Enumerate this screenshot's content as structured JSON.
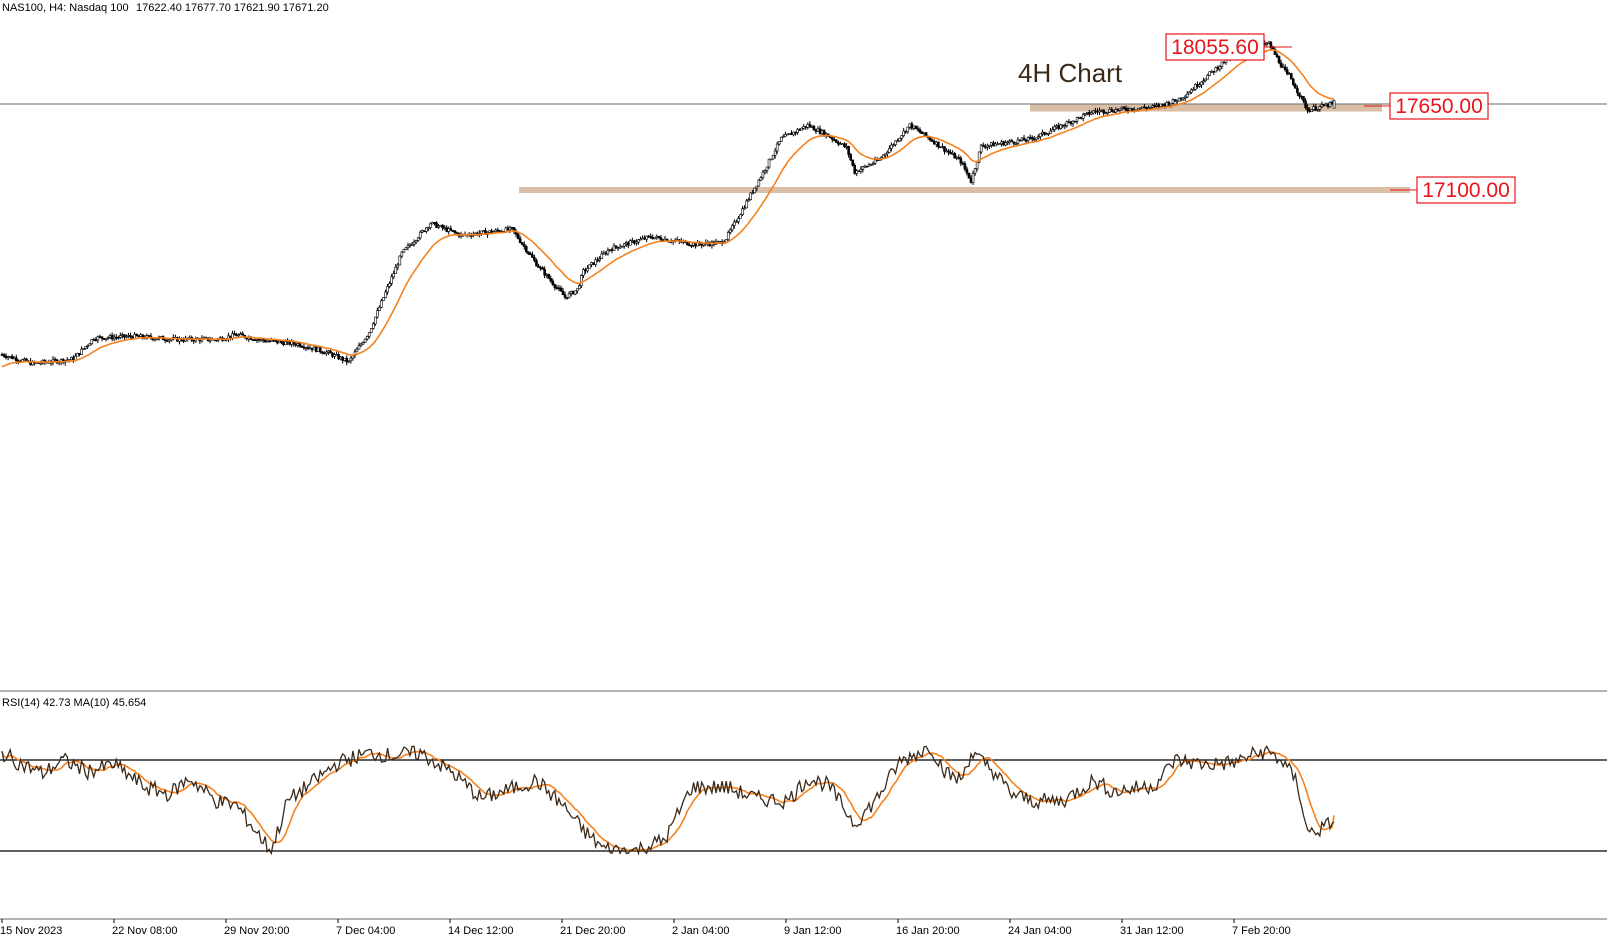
{
  "header": {
    "symbol": "NAS100, H4:  Nasdaq 100",
    "ohlc": "17622.40 17677.70 17621.90 17671.20"
  },
  "chart_data": {
    "type": "candlestick",
    "title": "4H Chart",
    "instrument": "NAS100",
    "timeframe": "H4",
    "last_ohlc": {
      "open": 17622.4,
      "high": 17677.7,
      "low": 17621.9,
      "close": 17671.2
    },
    "x_ticks": [
      "15 Nov 2023",
      "22 Nov 08:00",
      "29 Nov 20:00",
      "7 Dec 04:00",
      "14 Dec 12:00",
      "21 Dec 20:00",
      "2 Jan 04:00",
      "9 Jan 12:00",
      "16 Jan 20:00",
      "24 Jan 04:00",
      "31 Jan 12:00",
      "7 Feb 20:00"
    ],
    "price_range": [
      15750,
      18150
    ],
    "price_path_keypoints": [
      [
        0,
        15990
      ],
      [
        15,
        15930
      ],
      [
        35,
        15960
      ],
      [
        45,
        16100
      ],
      [
        65,
        16110
      ],
      [
        85,
        16090
      ],
      [
        105,
        16090
      ],
      [
        115,
        16120
      ],
      [
        130,
        16080
      ],
      [
        145,
        16060
      ],
      [
        160,
        16000
      ],
      [
        170,
        15940
      ],
      [
        180,
        16140
      ],
      [
        196,
        16660
      ],
      [
        210,
        16860
      ],
      [
        225,
        16780
      ],
      [
        250,
        16820
      ],
      [
        262,
        16590
      ],
      [
        276,
        16370
      ],
      [
        282,
        16420
      ],
      [
        285,
        16540
      ],
      [
        298,
        16690
      ],
      [
        318,
        16770
      ],
      [
        340,
        16720
      ],
      [
        352,
        16730
      ],
      [
        355,
        16760
      ],
      [
        370,
        17120
      ],
      [
        382,
        17420
      ],
      [
        395,
        17510
      ],
      [
        405,
        17440
      ],
      [
        414,
        17360
      ],
      [
        418,
        17200
      ],
      [
        430,
        17280
      ],
      [
        445,
        17510
      ],
      [
        458,
        17390
      ],
      [
        470,
        17270
      ],
      [
        475,
        17140
      ],
      [
        480,
        17370
      ],
      [
        505,
        17420
      ],
      [
        535,
        17600
      ],
      [
        565,
        17630
      ],
      [
        575,
        17670
      ],
      [
        580,
        17710
      ],
      [
        605,
        18000
      ],
      [
        621,
        18050
      ],
      [
        630,
        17840
      ],
      [
        631,
        17840
      ],
      [
        640,
        17610
      ],
      [
        652,
        17650
      ],
      [
        653,
        17671
      ]
    ],
    "moving_average": {
      "name": "",
      "color": "#f5821f"
    },
    "levels": [
      {
        "value": 18055.6,
        "label": "18055.60",
        "type": "high"
      },
      {
        "value": 17650.0,
        "label": "17650.00",
        "type": "resistance-zone",
        "zone": [
          17600,
          17650
        ]
      },
      {
        "value": 17100.0,
        "label": "17100.00",
        "type": "support-zone",
        "zone": [
          17060,
          17100
        ]
      }
    ],
    "horizontal_line": 17650.0,
    "rsi": {
      "label": "RSI(14) 42.73 MA(10) 45.654",
      "period": 14,
      "value": 42.73,
      "ma_period": 10,
      "ma_value": 45.654,
      "levels": [
        70,
        30
      ],
      "range": [
        20,
        80
      ],
      "keypoints": [
        [
          0,
          73
        ],
        [
          10,
          68
        ],
        [
          20,
          64
        ],
        [
          30,
          70
        ],
        [
          42,
          65
        ],
        [
          55,
          68
        ],
        [
          70,
          58
        ],
        [
          82,
          55
        ],
        [
          92,
          62
        ],
        [
          105,
          52
        ],
        [
          115,
          50
        ],
        [
          125,
          38
        ],
        [
          132,
          30
        ],
        [
          140,
          52
        ],
        [
          152,
          60
        ],
        [
          165,
          69
        ],
        [
          180,
          73
        ],
        [
          190,
          72
        ],
        [
          205,
          73
        ],
        [
          220,
          65
        ],
        [
          235,
          53
        ],
        [
          252,
          58
        ],
        [
          262,
          61
        ],
        [
          275,
          50
        ],
        [
          285,
          39
        ],
        [
          295,
          31
        ],
        [
          310,
          30
        ],
        [
          325,
          35
        ],
        [
          338,
          58
        ],
        [
          355,
          58
        ],
        [
          370,
          53
        ],
        [
          385,
          52
        ],
        [
          395,
          62
        ],
        [
          405,
          59
        ],
        [
          418,
          42
        ],
        [
          428,
          52
        ],
        [
          440,
          69
        ],
        [
          455,
          76
        ],
        [
          463,
          64
        ],
        [
          470,
          61
        ],
        [
          475,
          73
        ],
        [
          485,
          66
        ],
        [
          495,
          55
        ],
        [
          505,
          52
        ],
        [
          520,
          52
        ],
        [
          535,
          61
        ],
        [
          545,
          56
        ],
        [
          565,
          59
        ],
        [
          575,
          70
        ],
        [
          590,
          68
        ],
        [
          605,
          69
        ],
        [
          612,
          72
        ],
        [
          620,
          74
        ],
        [
          628,
          69
        ],
        [
          635,
          60
        ],
        [
          640,
          38
        ],
        [
          648,
          40
        ],
        [
          653,
          44
        ]
      ]
    }
  }
}
